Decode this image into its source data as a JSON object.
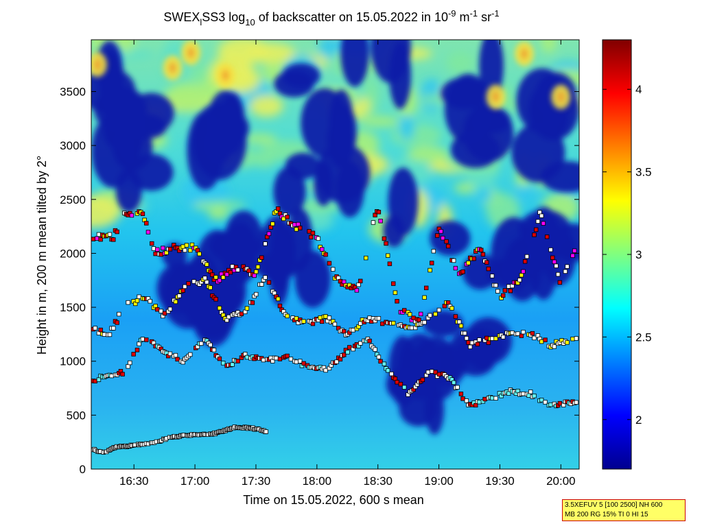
{
  "chart_data": {
    "type": "heatmap",
    "title_parts": {
      "pre": "SWEX",
      "sub1": "l",
      "mid": "SS3 log",
      "sub2": "10",
      "post": " of backscatter on 15.05.2022 in 10",
      "sup1": "-9",
      "unit1": " m",
      "sup2": "-1",
      "unit2": " sr",
      "sup3": "-1"
    },
    "xlabel": "Time on 15.05.2022, 600 s mean",
    "ylabel": "Height in m, 200 m mean tilted by 2°",
    "x_ticks": [
      {
        "label": "16:30",
        "minutes": 990
      },
      {
        "label": "17:00",
        "minutes": 1020
      },
      {
        "label": "17:30",
        "minutes": 1050
      },
      {
        "label": "18:00",
        "minutes": 1080
      },
      {
        "label": "18:30",
        "minutes": 1110
      },
      {
        "label": "19:00",
        "minutes": 1140
      },
      {
        "label": "19:30",
        "minutes": 1170
      },
      {
        "label": "20:00",
        "minutes": 1200
      }
    ],
    "xlim_minutes": [
      969,
      1209
    ],
    "y_ticks": [
      0,
      500,
      1000,
      1500,
      2000,
      2500,
      3000,
      3500
    ],
    "ylim": [
      0,
      3980
    ],
    "colorbar": {
      "ticks": [
        2,
        2.5,
        3,
        3.5,
        4
      ],
      "range": [
        1.7,
        4.3
      ],
      "colormap": "jet"
    },
    "layers": {
      "cloud_boundary_top": [
        [
          970,
          2150
        ],
        [
          980,
          2150
        ],
        [
          985,
          2380
        ],
        [
          995,
          2350
        ],
        [
          1000,
          2000
        ],
        [
          1010,
          2050
        ],
        [
          1020,
          2060
        ],
        [
          1030,
          1750
        ],
        [
          1040,
          1880
        ],
        [
          1050,
          1800
        ],
        [
          1060,
          2400
        ],
        [
          1070,
          2250
        ],
        [
          1080,
          2150
        ],
        [
          1090,
          1750
        ],
        [
          1100,
          1650
        ],
        [
          1110,
          2450
        ],
        [
          1120,
          1500
        ],
        [
          1130,
          1350
        ],
        [
          1140,
          2250
        ],
        [
          1150,
          1800
        ],
        [
          1160,
          2050
        ],
        [
          1170,
          1600
        ],
        [
          1180,
          1750
        ],
        [
          1190,
          2380
        ],
        [
          1200,
          1700
        ],
        [
          1208,
          2100
        ]
      ],
      "mid_layer": [
        [
          970,
          1300
        ],
        [
          978,
          1250
        ],
        [
          985,
          1500
        ],
        [
          995,
          1600
        ],
        [
          1005,
          1420
        ],
        [
          1015,
          1700
        ],
        [
          1025,
          1750
        ],
        [
          1035,
          1400
        ],
        [
          1045,
          1450
        ],
        [
          1055,
          1800
        ],
        [
          1065,
          1400
        ],
        [
          1075,
          1350
        ],
        [
          1085,
          1400
        ],
        [
          1095,
          1250
        ],
        [
          1105,
          1400
        ],
        [
          1115,
          1350
        ],
        [
          1125,
          1300
        ],
        [
          1135,
          1400
        ],
        [
          1145,
          1550
        ],
        [
          1155,
          1150
        ],
        [
          1165,
          1200
        ],
        [
          1175,
          1250
        ],
        [
          1185,
          1250
        ],
        [
          1195,
          1150
        ],
        [
          1208,
          1200
        ]
      ],
      "low_layer": [
        [
          970,
          820
        ],
        [
          978,
          880
        ],
        [
          985,
          900
        ],
        [
          995,
          1230
        ],
        [
          1005,
          1080
        ],
        [
          1015,
          1000
        ],
        [
          1025,
          1200
        ],
        [
          1035,
          950
        ],
        [
          1045,
          1050
        ],
        [
          1055,
          1000
        ],
        [
          1065,
          1050
        ],
        [
          1075,
          950
        ],
        [
          1085,
          920
        ],
        [
          1095,
          1100
        ],
        [
          1105,
          1200
        ],
        [
          1115,
          900
        ],
        [
          1125,
          700
        ],
        [
          1135,
          900
        ],
        [
          1145,
          850
        ],
        [
          1155,
          580
        ],
        [
          1165,
          650
        ],
        [
          1175,
          720
        ],
        [
          1185,
          700
        ],
        [
          1195,
          600
        ],
        [
          1208,
          620
        ]
      ],
      "boundary_layer": [
        [
          970,
          180
        ],
        [
          975,
          150
        ],
        [
          980,
          200
        ],
        [
          990,
          220
        ],
        [
          1000,
          250
        ],
        [
          1010,
          300
        ],
        [
          1020,
          320
        ],
        [
          1030,
          330
        ],
        [
          1040,
          390
        ],
        [
          1048,
          380
        ],
        [
          1055,
          350
        ]
      ]
    },
    "grid": false,
    "legend": "none"
  },
  "info_box": {
    "line1": "3.5XEFUV 5 [100 2500] NH 600",
    "line2": "MB 200 RG 15% TI 0 HI 15"
  },
  "colors": {
    "marker_edge": "#000000",
    "marker_fill_white": "#ffffff",
    "marker_fill_red": "#dd0000",
    "marker_fill_yellow": "#ffff00",
    "marker_fill_magenta": "#ff00ff",
    "marker_fill_cyan": "#66ffff"
  }
}
